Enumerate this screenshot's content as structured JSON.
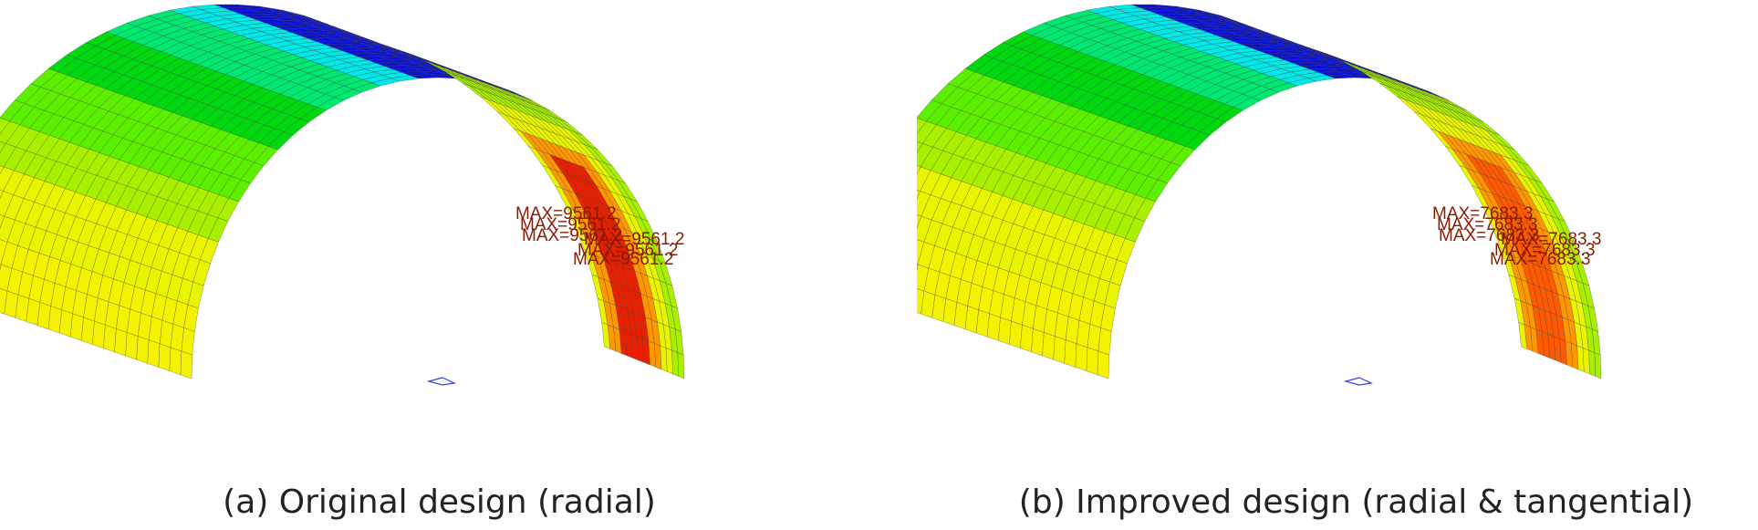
{
  "panels": [
    {
      "caption": "(a) Original design (radial)",
      "max_label": "MAX=9561.2",
      "max_label_count": 6
    },
    {
      "caption": "(b) Improved design (radial & tangential)",
      "max_label": "MAX=7683.3",
      "max_label_count": 6
    }
  ],
  "colors": {
    "band_colors": [
      "#0a12d8",
      "#00e8e8",
      "#00e870",
      "#00d810",
      "#5cf000",
      "#a8f000",
      "#e8f400",
      "#f4f200"
    ],
    "hot_colors": [
      "#ff9800",
      "#ff5a00",
      "#e82000"
    ],
    "mesh_line": "#3a3a3a"
  }
}
